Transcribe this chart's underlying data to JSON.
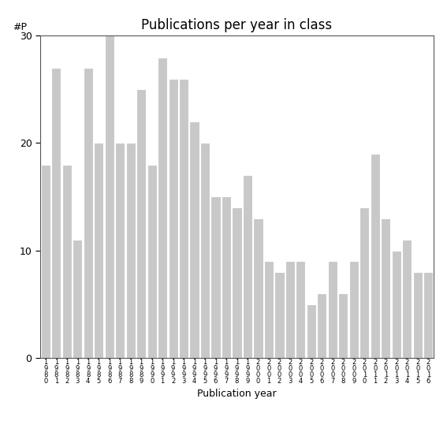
{
  "title": "Publications per year in class",
  "xlabel": "Publication year",
  "ylabel": "#P",
  "bar_color": "#c8c8c8",
  "categories": [
    "1\n9\n8\n0",
    "1\n9\n8\n1",
    "1\n9\n8\n2",
    "1\n9\n8\n3",
    "1\n9\n8\n4",
    "1\n9\n8\n5",
    "1\n9\n8\n6",
    "1\n9\n8\n7",
    "1\n9\n8\n8",
    "1\n9\n8\n9",
    "1\n9\n9\n0",
    "1\n9\n9\n1",
    "1\n9\n9\n2",
    "1\n9\n9\n3",
    "1\n9\n9\n4",
    "1\n9\n9\n5",
    "1\n9\n9\n6",
    "1\n9\n9\n7",
    "1\n9\n9\n8",
    "1\n9\n9\n9",
    "2\n0\n0\n0",
    "2\n0\n0\n1",
    "2\n0\n0\n2",
    "2\n0\n0\n3",
    "2\n0\n0\n4",
    "2\n0\n0\n5",
    "2\n0\n0\n6",
    "2\n0\n0\n7",
    "2\n0\n0\n8",
    "2\n0\n0\n9",
    "2\n0\n1\n0",
    "2\n0\n1\n1",
    "2\n0\n1\n2",
    "2\n0\n1\n3",
    "2\n0\n1\n4",
    "2\n0\n1\n5",
    "2\n0\n1\n6"
  ],
  "values": [
    18,
    27,
    18,
    11,
    27,
    20,
    30,
    20,
    20,
    25,
    18,
    28,
    26,
    26,
    22,
    20,
    15,
    15,
    14,
    17,
    13,
    9,
    8,
    9,
    9,
    5,
    6,
    9,
    6,
    9,
    14,
    19,
    13,
    10,
    11,
    8,
    8
  ],
  "ylim": [
    0,
    30
  ],
  "yticks": [
    0,
    10,
    20,
    30
  ],
  "background_color": "#ffffff",
  "title_fontsize": 12,
  "axis_label_fontsize": 9,
  "tick_fontsize": 9,
  "xtick_fontsize": 6
}
